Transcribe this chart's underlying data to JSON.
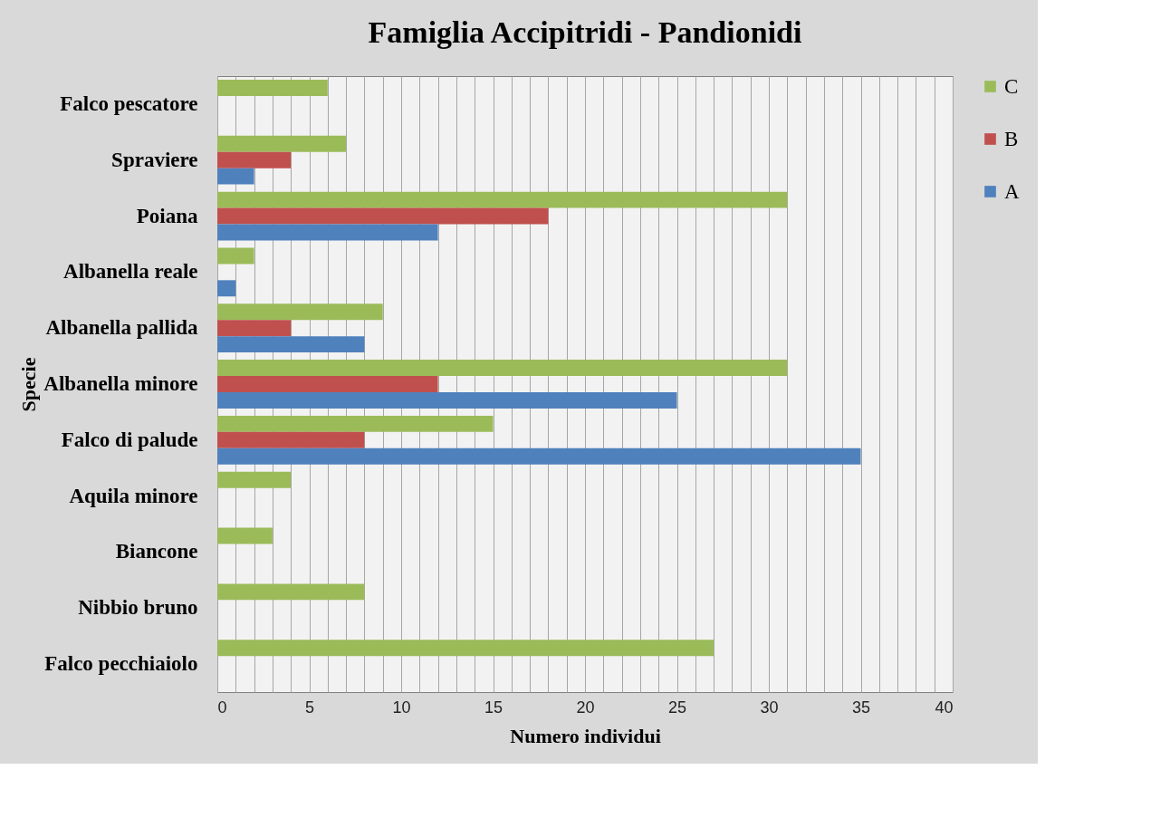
{
  "chart_data": {
    "type": "bar",
    "orientation": "horizontal",
    "title": "Famiglia Accipitridi - Pandionidi",
    "xlabel": "Numero individui",
    "ylabel": "Specie",
    "categories": [
      "Falco pescatore",
      "Spraviere",
      "Poiana",
      "Albanella reale",
      "Albanella pallida",
      "Albanella minore",
      "Falco di palude",
      "Aquila minore",
      "Biancone",
      "Nibbio bruno",
      "Falco pecchiaiolo"
    ],
    "series": [
      {
        "name": "C",
        "color": "#9bbb59",
        "values": [
          6,
          7,
          31,
          2,
          9,
          31,
          15,
          4,
          3,
          8,
          27
        ]
      },
      {
        "name": "B",
        "color": "#c0504d",
        "values": [
          null,
          4,
          18,
          null,
          4,
          12,
          8,
          null,
          null,
          null,
          null
        ]
      },
      {
        "name": "A",
        "color": "#4f81bd",
        "values": [
          null,
          2,
          12,
          1,
          8,
          25,
          35,
          null,
          null,
          null,
          null
        ]
      }
    ],
    "xlim": [
      0,
      40
    ],
    "xticks": [
      0,
      {
        "value": 1,
        "label": null
      },
      {
        "value": 2,
        "label": null
      },
      {
        "value": 3,
        "label": null
      },
      {
        "value": 4,
        "label": null
      },
      5,
      {
        "value": 6,
        "label": null
      },
      {
        "value": 7,
        "label": null
      },
      {
        "value": 8,
        "label": null
      },
      {
        "value": 9,
        "label": null
      },
      10,
      {
        "value": 11,
        "label": null
      },
      {
        "value": 12,
        "label": null
      },
      {
        "value": 13,
        "label": null
      },
      {
        "value": 14,
        "label": null
      },
      15,
      {
        "value": 16,
        "label": null
      },
      {
        "value": 17,
        "label": null
      },
      {
        "value": 18,
        "label": null
      },
      {
        "value": 19,
        "label": null
      },
      20,
      {
        "value": 21,
        "label": null
      },
      {
        "value": 22,
        "label": null
      },
      {
        "value": 23,
        "label": null
      },
      {
        "value": 24,
        "label": null
      },
      25,
      {
        "value": 26,
        "label": null
      },
      {
        "value": 27,
        "label": null
      },
      {
        "value": 28,
        "label": null
      },
      {
        "value": 29,
        "label": null
      },
      30,
      {
        "value": 31,
        "label": null
      },
      {
        "value": 32,
        "label": null
      },
      {
        "value": 33,
        "label": null
      },
      {
        "value": 34,
        "label": null
      },
      35,
      {
        "value": 36,
        "label": null
      },
      {
        "value": 37,
        "label": null
      },
      {
        "value": 38,
        "label": null
      },
      {
        "value": 39,
        "label": null
      },
      40
    ],
    "grid": "x",
    "legend": "right"
  }
}
